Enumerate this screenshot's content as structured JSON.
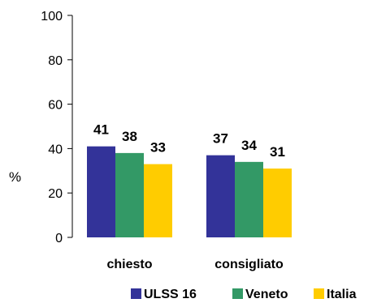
{
  "chart_data": {
    "type": "bar",
    "title": "",
    "xlabel": "",
    "ylabel": "%",
    "ylim": [
      0,
      100
    ],
    "yticks": [
      0,
      20,
      40,
      60,
      80,
      100
    ],
    "grid": false,
    "legend": "bottom-right",
    "categories": [
      "chiesto",
      "consigliato"
    ],
    "series": [
      {
        "name": "ULSS 16",
        "values": [
          41,
          37
        ],
        "color": "#333399"
      },
      {
        "name": "Veneto",
        "values": [
          38,
          34
        ],
        "color": "#339966"
      },
      {
        "name": "Italia",
        "values": [
          33,
          31
        ],
        "color": "#FFCC00"
      }
    ]
  }
}
